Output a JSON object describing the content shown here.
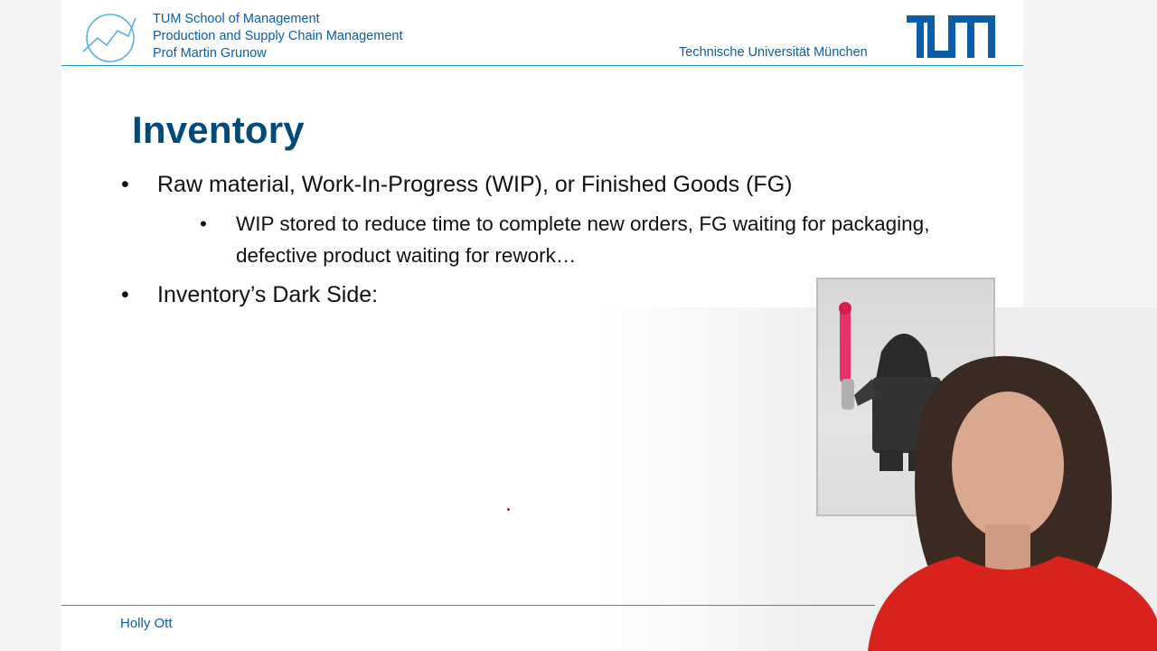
{
  "header": {
    "school": "TUM School of Management",
    "chair": "Production and Supply Chain Management",
    "professor": "Prof Martin Grunow",
    "university": "Technische Universität München"
  },
  "slide": {
    "title": "Inventory",
    "bullets": [
      "Raw material, Work-In-Progress (WIP), or Finished Goods (FG)",
      "WIP stored to reduce time to complete new orders, FG waiting for packaging, defective product waiting for rework…",
      "Inventory’s Dark Side:"
    ],
    "bullet_glyph": "•"
  },
  "footer": {
    "author": "Holly Ott"
  },
  "colors": {
    "tum_blue": "#0a5ea8",
    "title_blue": "#004a7c",
    "rule_blue": "#2d8fd0",
    "laser_red": "#c0141c"
  }
}
